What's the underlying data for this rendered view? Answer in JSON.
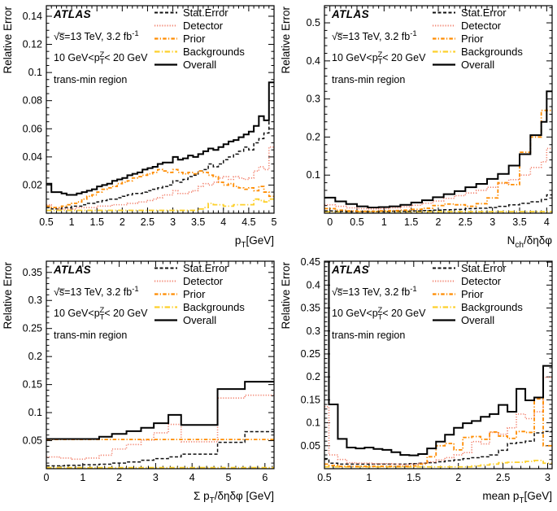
{
  "info": {
    "atlas": "ATLAS",
    "lumi_segments": [
      {
        "t": "√s̅=13 TeV, 3.2 fb"
      },
      {
        "t": "-1",
        "style": "sup"
      }
    ],
    "ptz_segments": [
      {
        "t": "10 GeV<p"
      },
      {
        "t": "T",
        "style": "sub"
      },
      {
        "t": "Z",
        "style": "supstack"
      },
      {
        "t": "< 20 GeV"
      }
    ],
    "region": "trans-min region"
  },
  "legend": {
    "items": [
      {
        "key": "stat",
        "label": "Stat.Error"
      },
      {
        "key": "detector",
        "label": "Detector"
      },
      {
        "key": "prior",
        "label": "Prior"
      },
      {
        "key": "backgrounds",
        "label": "Backgrounds"
      },
      {
        "key": "overall",
        "label": "Overall"
      }
    ]
  },
  "series_styles": {
    "stat": {
      "color": "#111111",
      "dash": "4 2.5",
      "width": 1.5
    },
    "detector": {
      "color": "#f2826e",
      "dash": "1.2 1.9",
      "width": 1.6
    },
    "prior": {
      "color": "#ff8c00",
      "dash": "4.5 2.2 1.3 2.2",
      "width": 1.8
    },
    "backgrounds": {
      "color": "#fdd02c",
      "dash": "6.5 2.4 1.3 2.4",
      "width": 1.8
    },
    "overall": {
      "color": "#000000",
      "dash": "",
      "width": 2
    }
  },
  "chart_data": [
    {
      "type": "line",
      "ylabel": "Relative Error",
      "xlabel_segments": [
        {
          "t": "p"
        },
        {
          "t": "T",
          "style": "sub"
        },
        {
          "t": "[GeV]"
        }
      ],
      "xlim": [
        0.5,
        5.0
      ],
      "ylim": [
        0,
        0.1475
      ],
      "xminor": 0.1,
      "yminor": 0.005,
      "xticks": [
        {
          "v": 0.5,
          "l": "0.5"
        },
        {
          "v": 1,
          "l": "1"
        },
        {
          "v": 1.5,
          "l": "1.5"
        },
        {
          "v": 2,
          "l": "2"
        },
        {
          "v": 2.5,
          "l": "2.5"
        },
        {
          "v": 3,
          "l": "3"
        },
        {
          "v": 3.5,
          "l": "3.5"
        },
        {
          "v": 4,
          "l": "4"
        },
        {
          "v": 4.5,
          "l": "4.5"
        },
        {
          "v": 5,
          "l": "5"
        }
      ],
      "yticks": [
        {
          "v": 0.02,
          "l": "0.02"
        },
        {
          "v": 0.04,
          "l": "0.04"
        },
        {
          "v": 0.06,
          "l": "0.06"
        },
        {
          "v": 0.08,
          "l": "0.08"
        },
        {
          "v": 0.1,
          "l": "0.1"
        },
        {
          "v": 0.12,
          "l": "0.12"
        },
        {
          "v": 0.14,
          "l": "0.14"
        }
      ],
      "x0": 0.5,
      "bw": 0.1,
      "series": [
        {
          "key": "backgrounds",
          "values": [
            0.002,
            0.002,
            0.002,
            0.002,
            0.002,
            0.002,
            0.002,
            0.002,
            0.002,
            0.002,
            0.002,
            0.002,
            0.002,
            0.002,
            0.002,
            0.002,
            0.002,
            0.002,
            0.002,
            0.002,
            0.002,
            0.002,
            0.002,
            0.002,
            0.002,
            0.002,
            0.002,
            0.002,
            0.002,
            0.002,
            0.003,
            0.004,
            0.007,
            0.006,
            0.006,
            0.005,
            0.005,
            0.006,
            0.006,
            0.006,
            0.006,
            0.01,
            0.009,
            0.008,
            0.01
          ]
        },
        {
          "key": "stat",
          "values": [
            0.004,
            0.003,
            0.003,
            0.004,
            0.004,
            0.005,
            0.005,
            0.006,
            0.007,
            0.007,
            0.008,
            0.009,
            0.01,
            0.01,
            0.011,
            0.012,
            0.013,
            0.014,
            0.014,
            0.015,
            0.016,
            0.017,
            0.018,
            0.019,
            0.02,
            0.023,
            0.022,
            0.024,
            0.026,
            0.027,
            0.03,
            0.031,
            0.035,
            0.033,
            0.035,
            0.038,
            0.04,
            0.042,
            0.044,
            0.047,
            0.045,
            0.05,
            0.053,
            0.057,
            0.08
          ]
        },
        {
          "key": "detector",
          "values": [
            0.006,
            0.004,
            0.003,
            0.003,
            0.003,
            0.003,
            0.004,
            0.004,
            0.004,
            0.004,
            0.005,
            0.005,
            0.005,
            0.006,
            0.006,
            0.006,
            0.007,
            0.007,
            0.008,
            0.008,
            0.009,
            0.01,
            0.011,
            0.013,
            0.013,
            0.016,
            0.014,
            0.014,
            0.015,
            0.016,
            0.019,
            0.021,
            0.02,
            0.022,
            0.025,
            0.026,
            0.024,
            0.026,
            0.025,
            0.024,
            0.025,
            0.03,
            0.033,
            0.031,
            0.047
          ]
        },
        {
          "key": "prior",
          "values": [
            0.005,
            0.004,
            0.004,
            0.005,
            0.006,
            0.007,
            0.008,
            0.01,
            0.012,
            0.013,
            0.015,
            0.017,
            0.018,
            0.019,
            0.021,
            0.022,
            0.023,
            0.025,
            0.026,
            0.027,
            0.028,
            0.029,
            0.031,
            0.03,
            0.029,
            0.031,
            0.029,
            0.028,
            0.029,
            0.028,
            0.03,
            0.029,
            0.027,
            0.026,
            0.022,
            0.02,
            0.021,
            0.019,
            0.018,
            0.017,
            0.018,
            0.016,
            0.019,
            0.015,
            0.012
          ]
        },
        {
          "key": "overall",
          "values": [
            0.021,
            0.015,
            0.015,
            0.014,
            0.013,
            0.013,
            0.014,
            0.015,
            0.016,
            0.017,
            0.019,
            0.02,
            0.021,
            0.023,
            0.024,
            0.025,
            0.027,
            0.028,
            0.029,
            0.031,
            0.032,
            0.033,
            0.035,
            0.036,
            0.036,
            0.04,
            0.038,
            0.039,
            0.041,
            0.04,
            0.042,
            0.044,
            0.046,
            0.045,
            0.047,
            0.049,
            0.051,
            0.052,
            0.054,
            0.056,
            0.058,
            0.062,
            0.069,
            0.066,
            0.093
          ]
        }
      ]
    },
    {
      "type": "line",
      "ylabel": "Relative Error",
      "xlabel_segments": [
        {
          "t": "N"
        },
        {
          "t": "ch",
          "style": "sub"
        },
        {
          "t": "/δηδφ"
        }
      ],
      "xlim": [
        -0.1,
        4.1
      ],
      "ylim": [
        0,
        0.545
      ],
      "xminor": 0.1,
      "yminor": 0.02,
      "xticks": [
        {
          "v": 0,
          "l": "0"
        },
        {
          "v": 0.5,
          "l": "0.5"
        },
        {
          "v": 1,
          "l": "1"
        },
        {
          "v": 1.5,
          "l": "1.5"
        },
        {
          "v": 2,
          "l": "2"
        },
        {
          "v": 2.5,
          "l": "2.5"
        },
        {
          "v": 3,
          "l": "3"
        },
        {
          "v": 3.5,
          "l": "3.5"
        },
        {
          "v": 4,
          "l": "4"
        }
      ],
      "yticks": [
        {
          "v": 0.1,
          "l": "0.1"
        },
        {
          "v": 0.2,
          "l": "0.2"
        },
        {
          "v": 0.3,
          "l": "0.3"
        },
        {
          "v": 0.4,
          "l": "0.4"
        },
        {
          "v": 0.5,
          "l": "0.5"
        }
      ],
      "edges": [
        -0.1,
        0.1,
        0.3,
        0.5,
        0.7,
        0.9,
        1.1,
        1.3,
        1.5,
        1.7,
        1.9,
        2.1,
        2.3,
        2.5,
        2.7,
        2.9,
        3.1,
        3.3,
        3.5,
        3.7,
        3.9,
        4.0,
        4.1
      ],
      "series": [
        {
          "key": "backgrounds",
          "edges": [
            -0.1,
            4.1
          ],
          "values": [
            0.004
          ]
        },
        {
          "key": "stat",
          "values": [
            0.006,
            0.005,
            0.004,
            0.004,
            0.004,
            0.004,
            0.005,
            0.005,
            0.006,
            0.007,
            0.008,
            0.009,
            0.01,
            0.012,
            0.013,
            0.015,
            0.018,
            0.022,
            0.026,
            0.03,
            0.036,
            0.048
          ]
        },
        {
          "key": "detector",
          "values": [
            0.022,
            0.018,
            0.014,
            0.012,
            0.011,
            0.012,
            0.014,
            0.017,
            0.021,
            0.026,
            0.032,
            0.039,
            0.046,
            0.053,
            0.06,
            0.068,
            0.078,
            0.088,
            0.1,
            0.12,
            0.135,
            0.17
          ]
        },
        {
          "key": "prior",
          "values": [
            0.012,
            0.008,
            0.006,
            0.005,
            0.005,
            0.006,
            0.007,
            0.008,
            0.01,
            0.013,
            0.02,
            0.024,
            0.022,
            0.018,
            0.025,
            0.04,
            0.08,
            0.075,
            0.16,
            0.2,
            0.27,
            0.27
          ]
        },
        {
          "key": "overall",
          "values": [
            0.041,
            0.031,
            0.024,
            0.018,
            0.015,
            0.016,
            0.018,
            0.022,
            0.028,
            0.034,
            0.042,
            0.05,
            0.058,
            0.068,
            0.077,
            0.09,
            0.103,
            0.125,
            0.155,
            0.205,
            0.24,
            0.32
          ]
        }
      ]
    },
    {
      "type": "line",
      "ylabel": "Relative Error",
      "xlabel_segments": [
        {
          "t": "Σ p"
        },
        {
          "t": "T",
          "style": "sub"
        },
        {
          "t": "/δηδφ [GeV]"
        }
      ],
      "xlim": [
        0,
        6.25
      ],
      "ylim": [
        0,
        0.37
      ],
      "xminor": 0.2,
      "yminor": 0.01,
      "xticks": [
        {
          "v": 0,
          "l": "0"
        },
        {
          "v": 1,
          "l": "1"
        },
        {
          "v": 2,
          "l": "2"
        },
        {
          "v": 3,
          "l": "3"
        },
        {
          "v": 4,
          "l": "4"
        },
        {
          "v": 5,
          "l": "5"
        },
        {
          "v": 6,
          "l": "6"
        }
      ],
      "yticks": [
        {
          "v": 0.05,
          "l": "0.05"
        },
        {
          "v": 0.1,
          "l": "0.1"
        },
        {
          "v": 0.15,
          "l": "0.15"
        },
        {
          "v": 0.2,
          "l": "0.2"
        },
        {
          "v": 0.25,
          "l": "0.25"
        },
        {
          "v": 0.3,
          "l": "0.3"
        },
        {
          "v": 0.35,
          "l": "0.35"
        }
      ],
      "series": [
        {
          "key": "backgrounds",
          "edges": [
            0,
            6.25
          ],
          "values": [
            0.002
          ]
        },
        {
          "key": "stat",
          "edges": [
            0,
            0.5,
            1.0,
            1.45,
            1.8,
            2.2,
            2.6,
            2.95,
            3.35,
            3.7,
            4.7,
            5.45,
            6.25
          ],
          "values": [
            0.005,
            0.006,
            0.007,
            0.008,
            0.01,
            0.012,
            0.015,
            0.018,
            0.021,
            0.026,
            0.047,
            0.066
          ]
        },
        {
          "key": "detector",
          "edges": [
            0,
            0.35,
            0.7,
            1.1,
            1.45,
            1.8,
            2.2,
            2.6,
            2.95,
            3.35,
            3.7,
            4.7,
            5.45,
            6.25
          ],
          "values": [
            0.021,
            0.019,
            0.017,
            0.019,
            0.024,
            0.035,
            0.043,
            0.051,
            0.064,
            0.079,
            0.048,
            0.126,
            0.131
          ]
        },
        {
          "key": "prior",
          "edges": [
            0,
            6.25
          ],
          "values": [
            0.052
          ]
        },
        {
          "key": "overall",
          "edges": [
            0,
            1.45,
            1.8,
            2.2,
            2.6,
            2.95,
            3.35,
            3.7,
            4.7,
            5.45,
            6.25
          ],
          "values": [
            0.053,
            0.057,
            0.062,
            0.067,
            0.073,
            0.081,
            0.096,
            0.078,
            0.142,
            0.155
          ]
        }
      ]
    },
    {
      "type": "line",
      "ylabel": "Relative Error",
      "xlabel_segments": [
        {
          "t": "mean p"
        },
        {
          "t": "T",
          "style": "sub"
        },
        {
          "t": "[GeV]"
        }
      ],
      "xlim": [
        0.5,
        3.05
      ],
      "ylim": [
        0,
        0.452
      ],
      "xminor": 0.1,
      "yminor": 0.01,
      "xticks": [
        {
          "v": 0.5,
          "l": "0.5"
        },
        {
          "v": 1,
          "l": "1"
        },
        {
          "v": 1.5,
          "l": "1.5"
        },
        {
          "v": 2,
          "l": "2"
        },
        {
          "v": 2.5,
          "l": "2.5"
        },
        {
          "v": 3,
          "l": "3"
        }
      ],
      "yticks": [
        {
          "v": 0.05,
          "l": "0.05"
        },
        {
          "v": 0.1,
          "l": "0.1"
        },
        {
          "v": 0.15,
          "l": "0.15"
        },
        {
          "v": 0.2,
          "l": "0.2"
        },
        {
          "v": 0.25,
          "l": "0.25"
        },
        {
          "v": 0.3,
          "l": "0.3"
        },
        {
          "v": 0.35,
          "l": "0.35"
        },
        {
          "v": 0.4,
          "l": "0.4"
        },
        {
          "v": 0.45,
          "l": "0.45"
        }
      ],
      "edges": [
        0.5,
        0.55,
        0.65,
        0.75,
        0.85,
        0.95,
        1.05,
        1.15,
        1.25,
        1.35,
        1.45,
        1.55,
        1.65,
        1.75,
        1.85,
        1.95,
        2.05,
        2.15,
        2.25,
        2.35,
        2.45,
        2.55,
        2.65,
        2.75,
        2.85,
        2.95,
        3.05
      ],
      "series": [
        {
          "key": "backgrounds",
          "values": [
            0.004,
            0.004,
            0.004,
            0.004,
            0.004,
            0.004,
            0.004,
            0.004,
            0.004,
            0.004,
            0.004,
            0.004,
            0.004,
            0.004,
            0.004,
            0.004,
            0.004,
            0.006,
            0.008,
            0.01,
            0.013,
            0.014,
            0.014,
            0.016,
            0.018,
            0.012
          ]
        },
        {
          "key": "stat",
          "values": [
            0.022,
            0.012,
            0.01,
            0.01,
            0.01,
            0.01,
            0.01,
            0.01,
            0.01,
            0.01,
            0.011,
            0.012,
            0.013,
            0.015,
            0.017,
            0.019,
            0.022,
            0.024,
            0.026,
            0.03,
            0.04,
            0.055,
            0.057,
            0.06,
            0.078,
            0.081
          ]
        },
        {
          "key": "detector",
          "values": [
            0.135,
            0.03,
            0.02,
            0.013,
            0.012,
            0.012,
            0.011,
            0.011,
            0.01,
            0.009,
            0.01,
            0.012,
            0.015,
            0.019,
            0.024,
            0.03,
            0.035,
            0.059,
            0.054,
            0.079,
            0.075,
            0.089,
            0.119,
            0.109,
            0.124,
            0.199
          ]
        },
        {
          "key": "prior",
          "values": [
            0.01,
            0.007,
            0.005,
            0.005,
            0.005,
            0.005,
            0.005,
            0.005,
            0.005,
            0.005,
            0.006,
            0.01,
            0.026,
            0.05,
            0.055,
            0.041,
            0.068,
            0.07,
            0.064,
            0.08,
            0.071,
            0.066,
            0.081,
            0.079,
            0.152,
            0.05
          ]
        },
        {
          "key": "overall",
          "values": [
            0.46,
            0.14,
            0.065,
            0.046,
            0.044,
            0.046,
            0.043,
            0.041,
            0.036,
            0.03,
            0.029,
            0.032,
            0.044,
            0.059,
            0.074,
            0.089,
            0.099,
            0.104,
            0.113,
            0.119,
            0.139,
            0.124,
            0.174,
            0.149,
            0.155,
            0.224
          ]
        }
      ]
    }
  ]
}
